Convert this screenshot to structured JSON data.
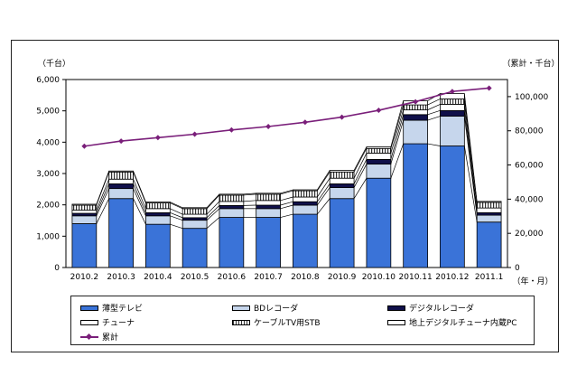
{
  "chart_data": {
    "type": "bar",
    "stacked": true,
    "categories": [
      "2010.2",
      "2010.3",
      "2010.4",
      "2010.5",
      "2010.6",
      "2010.7",
      "2010.8",
      "2010.9",
      "2010.10",
      "2010.11",
      "2010.12",
      "2011.1"
    ],
    "left_axis": {
      "unit_label": "（千台）",
      "ylim": [
        0,
        6000
      ],
      "ticks": [
        "0",
        "1,000",
        "2,000",
        "3,000",
        "4,000",
        "5,000",
        "6,000"
      ],
      "tick_values": [
        0,
        1000,
        2000,
        3000,
        4000,
        5000,
        6000
      ]
    },
    "right_axis": {
      "unit_label": "（累計・千台）",
      "ylim": [
        0,
        110000
      ],
      "ticks": [
        "0",
        "20,000",
        "40,000",
        "60,000",
        "80,000",
        "100,000"
      ],
      "tick_values": [
        0,
        20000,
        40000,
        60000,
        80000,
        100000
      ]
    },
    "xlabel": "（年・月）",
    "series": [
      {
        "name": "薄型テレビ",
        "color": "#3a73d8",
        "values": [
          1400,
          2200,
          1380,
          1250,
          1600,
          1600,
          1700,
          2200,
          2850,
          3950,
          3880,
          1450
        ]
      },
      {
        "name": "BDレコーダ",
        "color": "#c6d6ec",
        "values": [
          250,
          320,
          270,
          260,
          280,
          280,
          290,
          350,
          450,
          750,
          950,
          220
        ]
      },
      {
        "name": "デジタルレコーダ",
        "color": "#10104a",
        "values": [
          80,
          150,
          100,
          80,
          100,
          110,
          110,
          120,
          150,
          180,
          180,
          80
        ]
      },
      {
        "name": "チューナ",
        "color": "#ffffff",
        "values": [
          100,
          150,
          130,
          110,
          130,
          150,
          150,
          180,
          200,
          150,
          200,
          150
        ]
      },
      {
        "name": "ケーブルTV用STB",
        "color": "#e6e6e6",
        "pattern": "vstripe",
        "values": [
          160,
          230,
          180,
          180,
          200,
          200,
          200,
          200,
          150,
          160,
          170,
          180
        ]
      },
      {
        "name": "地上デジタルチューナ内蔵PC",
        "color": "#ffffff",
        "values": [
          30,
          30,
          30,
          30,
          30,
          30,
          30,
          50,
          50,
          130,
          170,
          30
        ]
      }
    ],
    "line_series": {
      "name": "累計",
      "axis": "right",
      "color": "#7a1f7a",
      "values": [
        71000,
        74000,
        76000,
        78000,
        80500,
        82500,
        85000,
        88000,
        92000,
        97000,
        103000,
        105000
      ]
    },
    "grid": false,
    "legend": "bottom"
  }
}
